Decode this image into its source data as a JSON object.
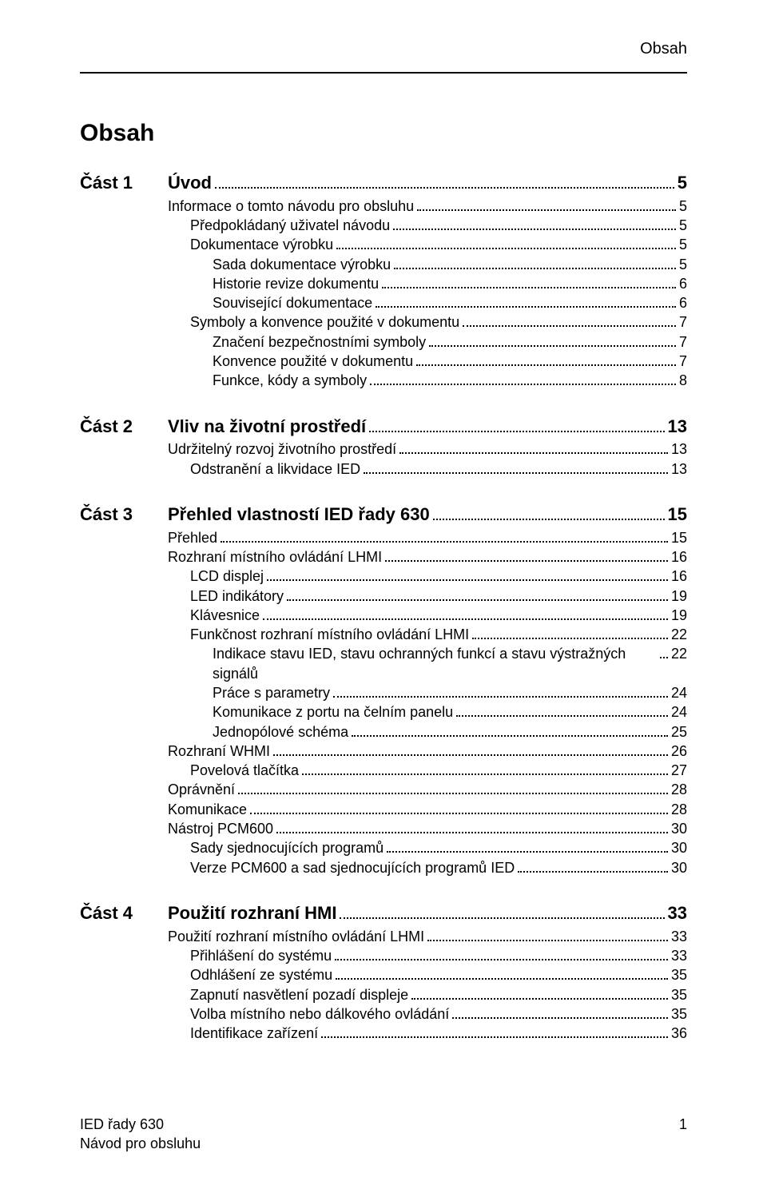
{
  "header": {
    "title": "Obsah"
  },
  "main_title": "Obsah",
  "sections": [
    {
      "part": "Část 1",
      "entries": [
        {
          "level": 0,
          "title": "Úvod",
          "page": "5"
        },
        {
          "level": 1,
          "title": "Informace o tomto návodu pro obsluhu",
          "page": "5"
        },
        {
          "level": 2,
          "title": "Předpokládaný uživatel návodu",
          "page": "5"
        },
        {
          "level": 2,
          "title": "Dokumentace výrobku",
          "page": "5"
        },
        {
          "level": 3,
          "title": "Sada dokumentace výrobku",
          "page": "5"
        },
        {
          "level": 3,
          "title": "Historie revize dokumentu",
          "page": "6"
        },
        {
          "level": 3,
          "title": "Související dokumentace",
          "page": "6"
        },
        {
          "level": 2,
          "title": "Symboly a konvence použité v dokumentu",
          "page": "7"
        },
        {
          "level": 3,
          "title": "Značení bezpečnostními symboly",
          "page": "7"
        },
        {
          "level": 3,
          "title": "Konvence použité v dokumentu",
          "page": "7"
        },
        {
          "level": 3,
          "title": "Funkce, kódy a symboly",
          "page": "8"
        }
      ]
    },
    {
      "part": "Část 2",
      "entries": [
        {
          "level": 0,
          "title": "Vliv na životní prostředí",
          "page": "13"
        },
        {
          "level": 1,
          "title": "Udržitelný rozvoj životního prostředí",
          "page": "13"
        },
        {
          "level": 2,
          "title": "Odstranění a likvidace IED",
          "page": "13"
        }
      ]
    },
    {
      "part": "Část 3",
      "entries": [
        {
          "level": 0,
          "title": "Přehled vlastností IED řady 630",
          "page": "15"
        },
        {
          "level": 1,
          "title": "Přehled",
          "page": "15"
        },
        {
          "level": 1,
          "title": "Rozhraní místního ovládání LHMI",
          "page": "16"
        },
        {
          "level": 2,
          "title": "LCD displej",
          "page": "16"
        },
        {
          "level": 2,
          "title": "LED indikátory",
          "page": "19"
        },
        {
          "level": 2,
          "title": "Klávesnice",
          "page": "19"
        },
        {
          "level": 2,
          "title": "Funkčnost rozhraní místního ovládání LHMI",
          "page": "22"
        },
        {
          "level": 3,
          "title": "Indikace stavu IED, stavu ochranných funkcí a stavu výstražných signálů",
          "page": "22"
        },
        {
          "level": 3,
          "title": "Práce s parametry",
          "page": "24"
        },
        {
          "level": 3,
          "title": "Komunikace z portu na čelním panelu",
          "page": "24"
        },
        {
          "level": 3,
          "title": "Jednopólové schéma",
          "page": "25"
        },
        {
          "level": 1,
          "title": "Rozhraní WHMI",
          "page": "26"
        },
        {
          "level": 2,
          "title": "Povelová tlačítka",
          "page": "27"
        },
        {
          "level": 1,
          "title": "Oprávnění",
          "page": "28"
        },
        {
          "level": 1,
          "title": "Komunikace",
          "page": "28"
        },
        {
          "level": 1,
          "title": "Nástroj PCM600",
          "page": "30"
        },
        {
          "level": 2,
          "title": "Sady sjednocujících programů",
          "page": "30"
        },
        {
          "level": 2,
          "title": "Verze PCM600 a sad sjednocujících programů IED",
          "page": "30"
        }
      ]
    },
    {
      "part": "Část 4",
      "entries": [
        {
          "level": 0,
          "title": "Použití rozhraní HMI",
          "page": "33"
        },
        {
          "level": 1,
          "title": "Použití rozhraní místního ovládání LHMI",
          "page": "33"
        },
        {
          "level": 2,
          "title": "Přihlášení do systému",
          "page": "33"
        },
        {
          "level": 2,
          "title": "Odhlášení ze systému",
          "page": "35"
        },
        {
          "level": 2,
          "title": "Zapnutí nasvětlení pozadí displeje",
          "page": "35"
        },
        {
          "level": 2,
          "title": "Volba místního nebo dálkového ovládání",
          "page": "35"
        },
        {
          "level": 2,
          "title": "Identifikace zařízení",
          "page": "36"
        }
      ]
    }
  ],
  "footer": {
    "left_line1": "IED řady 630",
    "left_line2": "Návod pro obsluhu",
    "page_number": "1"
  }
}
